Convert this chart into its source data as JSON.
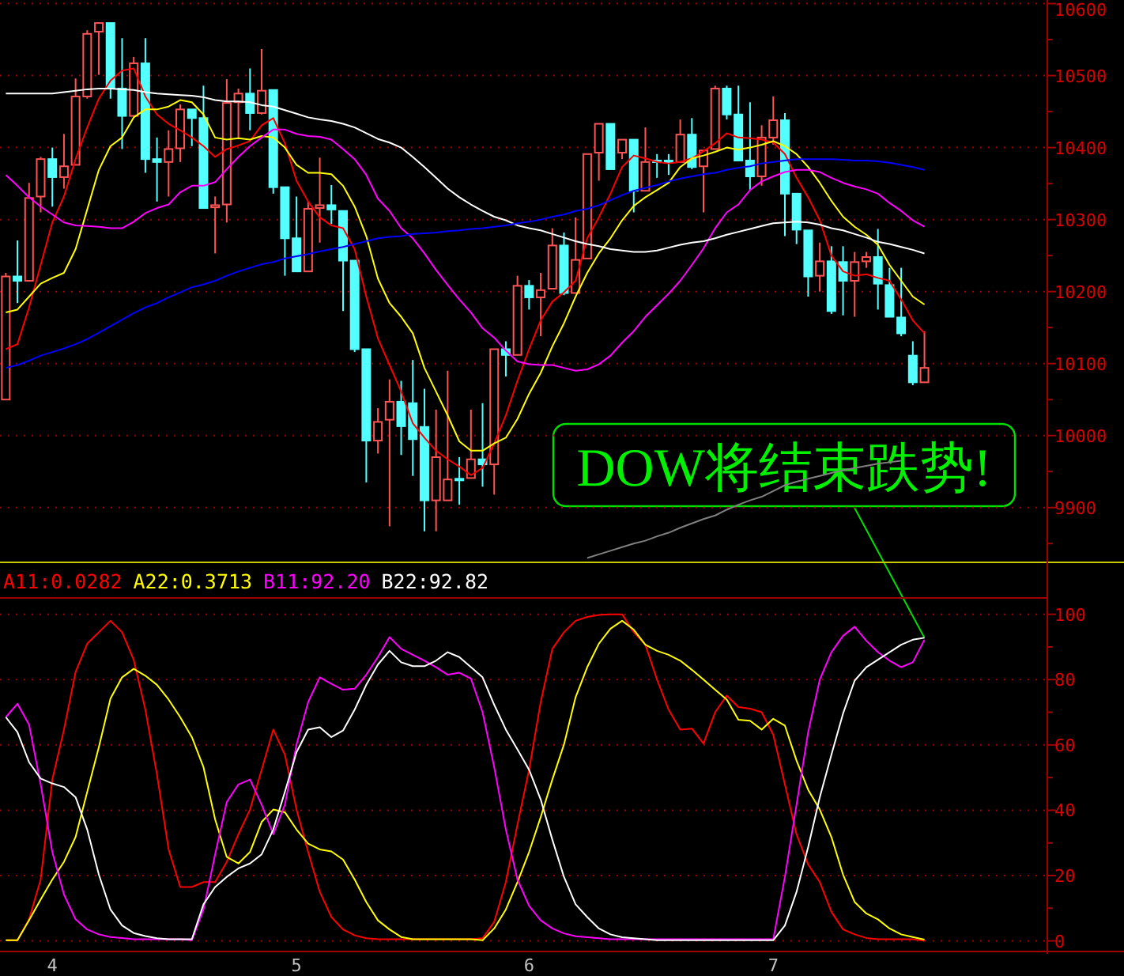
{
  "chart_data": [
    {
      "type": "candlestick",
      "tick_labels": "y",
      "grid": "y",
      "categories": [
        null,
        null,
        null,
        null,
        null,
        null,
        null,
        null,
        null,
        null,
        null,
        null,
        null,
        null,
        null,
        null,
        null,
        null,
        null,
        null,
        null,
        null,
        null,
        null,
        null,
        null,
        null,
        null,
        null,
        null,
        null,
        null,
        null,
        null,
        null,
        null,
        null,
        null,
        null,
        null,
        null,
        null,
        null,
        null,
        null,
        null,
        null,
        null,
        null,
        null,
        null,
        null,
        null,
        null,
        null,
        null,
        null,
        null,
        null,
        null,
        null,
        null,
        null,
        null,
        null,
        null,
        null,
        null,
        null,
        null,
        null,
        null,
        null,
        null,
        null,
        null,
        null,
        null,
        null,
        null
      ],
      "ohlc": [
        [
          10050,
          10226,
          10050,
          10221
        ],
        [
          10221,
          10271,
          10184,
          10215
        ],
        [
          10215,
          10351,
          10215,
          10330
        ],
        [
          10332,
          10387,
          10310,
          10384
        ],
        [
          10384,
          10400,
          10318,
          10359
        ],
        [
          10359,
          10419,
          10343,
          10374
        ],
        [
          10376,
          10496,
          10376,
          10471
        ],
        [
          10471,
          10563,
          10468,
          10558
        ],
        [
          10561,
          10574,
          10501,
          10573
        ],
        [
          10573,
          10573,
          10468,
          10482
        ],
        [
          10482,
          10552,
          10398,
          10444
        ],
        [
          10444,
          10526,
          10444,
          10517
        ],
        [
          10517,
          10552,
          10365,
          10384
        ],
        [
          10384,
          10414,
          10325,
          10380
        ],
        [
          10380,
          10424,
          10332,
          10398
        ],
        [
          10399,
          10460,
          10380,
          10453
        ],
        [
          10453,
          10453,
          10402,
          10441
        ],
        [
          10441,
          10486,
          10316,
          10316
        ],
        [
          10317,
          10332,
          10253,
          10320
        ],
        [
          10321,
          10495,
          10296,
          10462
        ],
        [
          10463,
          10482,
          10413,
          10475
        ],
        [
          10475,
          10510,
          10424,
          10448
        ],
        [
          10448,
          10537,
          10446,
          10479
        ],
        [
          10480,
          10480,
          10336,
          10345
        ],
        [
          10345,
          10345,
          10222,
          10274
        ],
        [
          10274,
          10332,
          10228,
          10228
        ],
        [
          10228,
          10325,
          10228,
          10315
        ],
        [
          10316,
          10386,
          10268,
          10320
        ],
        [
          10320,
          10348,
          10294,
          10314
        ],
        [
          10312,
          10312,
          10173,
          10243
        ],
        [
          10243,
          10243,
          10116,
          10120
        ],
        [
          10120,
          10120,
          9935,
          9993
        ],
        [
          9993,
          10038,
          9975,
          10019
        ],
        [
          10022,
          10078,
          9874,
          10047
        ],
        [
          10047,
          10076,
          9973,
          10013
        ],
        [
          10045,
          10105,
          9944,
          9995
        ],
        [
          10012,
          10065,
          9867,
          9910
        ],
        [
          9910,
          10036,
          9867,
          9970
        ],
        [
          9910,
          10090,
          9910,
          9939
        ],
        [
          9940,
          9970,
          9904,
          9938
        ],
        [
          9941,
          10036,
          9941,
          9967
        ],
        [
          9967,
          10045,
          9929,
          9960
        ],
        [
          9960,
          10120,
          9918,
          10120
        ],
        [
          10120,
          10131,
          10082,
          10112
        ],
        [
          10112,
          10222,
          10112,
          10208
        ],
        [
          10208,
          10216,
          10175,
          10192
        ],
        [
          10192,
          10226,
          10138,
          10202
        ],
        [
          10204,
          10288,
          10204,
          10264
        ],
        [
          10264,
          10282,
          10195,
          10198
        ],
        [
          10198,
          10303,
          10198,
          10244
        ],
        [
          10246,
          10391,
          10246,
          10391
        ],
        [
          10393,
          10433,
          10354,
          10433
        ],
        [
          10433,
          10433,
          10369,
          10370
        ],
        [
          10393,
          10411,
          10384,
          10411
        ],
        [
          10411,
          10411,
          10310,
          10340
        ],
        [
          10340,
          10428,
          10340,
          10380
        ],
        [
          10382,
          10391,
          10358,
          10381
        ],
        [
          10382,
          10391,
          10362,
          10381
        ],
        [
          10380,
          10439,
          10380,
          10418
        ],
        [
          10418,
          10441,
          10370,
          10373
        ],
        [
          10374,
          10396,
          10310,
          10396
        ],
        [
          10398,
          10486,
          10398,
          10482
        ],
        [
          10482,
          10486,
          10439,
          10446
        ],
        [
          10446,
          10486,
          10382,
          10382
        ],
        [
          10382,
          10463,
          10341,
          10360
        ],
        [
          10360,
          10431,
          10347,
          10414
        ],
        [
          10414,
          10471,
          10404,
          10438
        ],
        [
          10438,
          10448,
          10277,
          10336
        ],
        [
          10336,
          10336,
          10266,
          10286
        ],
        [
          10285,
          10285,
          10193,
          10221
        ],
        [
          10222,
          10268,
          10200,
          10242
        ],
        [
          10242,
          10263,
          10169,
          10173
        ],
        [
          10241,
          10263,
          10167,
          10215
        ],
        [
          10215,
          10255,
          10165,
          10241
        ],
        [
          10242,
          10255,
          10233,
          10248
        ],
        [
          10248,
          10287,
          10175,
          10211
        ],
        [
          10209,
          10233,
          10165,
          10165
        ],
        [
          10164,
          10233,
          10138,
          10142
        ],
        [
          10111,
          10131,
          10070,
          10074
        ],
        [
          10074,
          10145,
          10074,
          10094
        ]
      ],
      "colors": [
        "#ff5454",
        "#54ffff",
        "#ff5454",
        "#ff5454",
        "#54ffff",
        "#ff5454",
        "#ff5454",
        "#ff5454",
        "#ff5454",
        "#54ffff",
        "#54ffff",
        "#ff5454",
        "#54ffff",
        "#54ffff",
        "#ff5454",
        "#ff5454",
        "#54ffff",
        "#54ffff",
        "#ff5454",
        "#ff5454",
        "#ff5454",
        "#54ffff",
        "#ff5454",
        "#54ffff",
        "#54ffff",
        "#54ffff",
        "#ff5454",
        "#ff5454",
        "#54ffff",
        "#54ffff",
        "#54ffff",
        "#54ffff",
        "#ff5454",
        "#ff5454",
        "#54ffff",
        "#54ffff",
        "#54ffff",
        "#ff5454",
        "#ff5454",
        "#54ffff",
        "#ff5454",
        "#54ffff",
        "#ff5454",
        "#54ffff",
        "#ff5454",
        "#54ffff",
        "#ff5454",
        "#ff5454",
        "#54ffff",
        "#ff5454",
        "#ff5454",
        "#ff5454",
        "#54ffff",
        "#ff5454",
        "#54ffff",
        "#ff5454",
        "#54ffff",
        "#54ffff",
        "#ff5454",
        "#54ffff",
        "#ff5454",
        "#ff5454",
        "#54ffff",
        "#54ffff",
        "#54ffff",
        "#ff5454",
        "#ff5454",
        "#54ffff",
        "#54ffff",
        "#54ffff",
        "#ff5454",
        "#54ffff",
        "#54ffff",
        "#ff5454",
        "#ff5454",
        "#54ffff",
        "#54ffff",
        "#54ffff",
        "#54ffff",
        "#ff5454"
      ],
      "series": [
        {
          "type": "line",
          "color": "#ff0000",
          "values": [
            10120,
            10127,
            10178,
            10237,
            10296,
            10332,
            10384,
            10428,
            10468,
            10493,
            10507,
            10510,
            10471,
            10446,
            10433,
            10424,
            10414,
            10402,
            10387,
            10398,
            10403,
            10409,
            10431,
            10441,
            10406,
            10354,
            10325,
            10303,
            10292,
            10288,
            10259,
            10193,
            10135,
            10098,
            10061,
            10017,
            9997,
            9979,
            9967,
            9957,
            9945,
            9955,
            9989,
            10028,
            10076,
            10120,
            10160,
            10186,
            10199,
            10215,
            10274,
            10303,
            10336,
            10373,
            10389,
            10385,
            10380,
            10378,
            10380,
            10385,
            10395,
            10406,
            10420,
            10414,
            10413,
            10411,
            10407,
            10391,
            10358,
            10331,
            10299,
            10250,
            10228,
            10222,
            10224,
            10219,
            10215,
            10189,
            10160,
            10142
          ]
        },
        {
          "type": "line",
          "color": "#ffff00",
          "values": [
            10171,
            10175,
            10193,
            10211,
            10219,
            10226,
            10259,
            10314,
            10369,
            10402,
            10414,
            10442,
            10453,
            10453,
            10457,
            10466,
            10463,
            10446,
            10414,
            10411,
            10413,
            10411,
            10416,
            10414,
            10400,
            10376,
            10365,
            10365,
            10363,
            10347,
            10318,
            10277,
            10218,
            10184,
            10165,
            10142,
            10094,
            10061,
            10028,
            9992,
            9979,
            9979,
            9989,
            9997,
            10023,
            10058,
            10087,
            10124,
            10156,
            10193,
            10226,
            10253,
            10274,
            10299,
            10319,
            10331,
            10341,
            10351,
            10373,
            10385,
            10389,
            10394,
            10400,
            10397,
            10400,
            10404,
            10409,
            10402,
            10391,
            10373,
            10351,
            10326,
            10304,
            10290,
            10279,
            10265,
            10237,
            10215,
            10193,
            10182
          ]
        },
        {
          "type": "line",
          "color": "#ff00ff",
          "values": [
            10362,
            10347,
            10331,
            10318,
            10307,
            10296,
            10292,
            10291,
            10290,
            10288,
            10288,
            10297,
            10309,
            10316,
            10321,
            10338,
            10347,
            10347,
            10352,
            10370,
            10387,
            10402,
            10414,
            10425,
            10425,
            10419,
            10416,
            10415,
            10411,
            10398,
            10384,
            10362,
            10329,
            10312,
            10288,
            10274,
            10253,
            10230,
            10209,
            10189,
            10171,
            10149,
            10136,
            10118,
            10103,
            10099,
            10098,
            10098,
            10094,
            10090,
            10092,
            10099,
            10111,
            10129,
            10145,
            10165,
            10181,
            10197,
            10215,
            10237,
            10260,
            10288,
            10310,
            10321,
            10341,
            10353,
            10360,
            10366,
            10369,
            10369,
            10366,
            10358,
            10351,
            10346,
            10342,
            10336,
            10323,
            10312,
            10299,
            10290
          ]
        },
        {
          "type": "line",
          "color": "#ffffff",
          "values": [
            10475,
            10475,
            10475,
            10475,
            10475,
            10477,
            10479,
            10481,
            10482,
            10482,
            10481,
            10480,
            10477,
            10475,
            10474,
            10473,
            10472,
            10470,
            10466,
            10464,
            10464,
            10463,
            10459,
            10457,
            10452,
            10447,
            10442,
            10439,
            10437,
            10433,
            10428,
            10420,
            10412,
            10407,
            10400,
            10387,
            10373,
            10358,
            10343,
            10331,
            10321,
            10312,
            10304,
            10299,
            10292,
            10288,
            10285,
            10280,
            10275,
            10270,
            10266,
            10263,
            10259,
            10257,
            10255,
            10255,
            10257,
            10261,
            10265,
            10268,
            10270,
            10274,
            10279,
            10283,
            10287,
            10291,
            10295,
            10296,
            10297,
            10296,
            10293,
            10288,
            10285,
            10280,
            10275,
            10269,
            10266,
            10262,
            10258,
            10253
          ]
        },
        {
          "type": "line",
          "color": "#0000ff",
          "values": [
            10094,
            10098,
            10104,
            10111,
            10116,
            10121,
            10127,
            10134,
            10143,
            10152,
            10161,
            10170,
            10178,
            10184,
            10192,
            10199,
            10206,
            10210,
            10215,
            10222,
            10228,
            10233,
            10238,
            10241,
            10246,
            10249,
            10252,
            10256,
            10259,
            10262,
            10266,
            10270,
            10274,
            10276,
            10277,
            10280,
            10281,
            10282,
            10284,
            10285,
            10287,
            10288,
            10290,
            10292,
            10295,
            10297,
            10300,
            10304,
            10307,
            10312,
            10315,
            10320,
            10327,
            10334,
            10340,
            10344,
            10348,
            10353,
            10357,
            10360,
            10363,
            10365,
            10369,
            10372,
            10374,
            10378,
            10380,
            10382,
            10384,
            10384,
            10384,
            10384,
            10383,
            10382,
            10382,
            10381,
            10379,
            10376,
            10373,
            10369
          ]
        },
        {
          "type": "line",
          "color": "#808080",
          "values": [
            null,
            null,
            null,
            null,
            null,
            null,
            null,
            null,
            null,
            null,
            null,
            null,
            null,
            null,
            null,
            null,
            null,
            null,
            null,
            null,
            null,
            null,
            null,
            null,
            null,
            null,
            null,
            null,
            null,
            null,
            null,
            null,
            null,
            null,
            null,
            null,
            null,
            null,
            null,
            null,
            null,
            null,
            null,
            null,
            null,
            null,
            null,
            null,
            null,
            null,
            9830,
            9835,
            9840,
            9845,
            9850,
            9854,
            9860,
            9865,
            9872,
            9878,
            9884,
            9889,
            9897,
            9904,
            9910,
            9915,
            9923,
            9931,
            9936,
            9940,
            9944,
            9948,
            9952,
            9955,
            9958,
            9961,
            9963,
            9965,
            null,
            null
          ]
        }
      ],
      "ylim": [
        9825,
        10605
      ],
      "yticks": [
        9900,
        10000,
        10100,
        10200,
        10300,
        10400,
        10500,
        10600
      ]
    },
    {
      "type": "line",
      "grid": "y",
      "legend": "top left",
      "annotations": [
        "DOW将结束跌势!"
      ],
      "categories": [
        null,
        null,
        null,
        null,
        "4",
        null,
        null,
        null,
        null,
        null,
        null,
        null,
        null,
        null,
        null,
        null,
        null,
        null,
        null,
        null,
        null,
        null,
        null,
        null,
        null,
        "5",
        null,
        null,
        null,
        null,
        null,
        null,
        null,
        null,
        null,
        null,
        null,
        null,
        null,
        null,
        null,
        null,
        null,
        null,
        null,
        "6",
        null,
        null,
        null,
        null,
        null,
        null,
        null,
        null,
        null,
        null,
        null,
        null,
        null,
        null,
        null,
        null,
        null,
        null,
        null,
        null,
        "7",
        null,
        null,
        null,
        null,
        null,
        null,
        null,
        null,
        null,
        null,
        null,
        null,
        null
      ],
      "series": [
        {
          "name": "A11:0.0282",
          "color": "#ff0000",
          "values": [
            0.2,
            0.2,
            6.6,
            18.8,
            49.4,
            64.7,
            82.3,
            91,
            94.5,
            98,
            94.5,
            86,
            70.8,
            50.9,
            28,
            16.5,
            16.5,
            18,
            18,
            24.2,
            32.6,
            40.2,
            52.4,
            64.7,
            57,
            40.2,
            27.2,
            15,
            7.3,
            3.5,
            1.7,
            0.8,
            0.5,
            0.5,
            0.5,
            0.5,
            0.5,
            0.5,
            0.5,
            0.5,
            0.5,
            0.8,
            5.8,
            18,
            35.6,
            52.4,
            73.1,
            89.4,
            94.5,
            98,
            99.2,
            99.8,
            100,
            100,
            94.5,
            90.7,
            80,
            70.8,
            64.7,
            65,
            60.4,
            70,
            75.1,
            71.6,
            71.1,
            70,
            63.1,
            47.9,
            32.6,
            23.4,
            18,
            8.9,
            3.5,
            2,
            0.9,
            0.5,
            0.5,
            0.5,
            0.5,
            0
          ]
        },
        {
          "name": "A22:0.3713",
          "color": "#ffff00",
          "values": [
            0.2,
            0.2,
            6.3,
            12.7,
            18.8,
            24.2,
            31.8,
            45.6,
            59.3,
            74.2,
            80.7,
            83.3,
            81.2,
            78.4,
            73.9,
            68.5,
            62.4,
            53.2,
            37.2,
            25.7,
            23.7,
            27.2,
            36.4,
            40.2,
            39.4,
            34.1,
            29.8,
            28,
            27.4,
            24.9,
            18.8,
            11.9,
            6.3,
            3.5,
            1.2,
            0.5,
            0.5,
            0.5,
            0.5,
            0.5,
            0.5,
            0.2,
            3.8,
            9.6,
            18,
            27.2,
            37.9,
            49.4,
            60.1,
            74.6,
            83.8,
            91,
            95.6,
            98,
            95.3,
            90.7,
            88.8,
            87.6,
            85.8,
            83,
            80,
            76.9,
            73.9,
            67.7,
            67.4,
            64.7,
            68,
            65.9,
            55.2,
            46.3,
            40.2,
            31.8,
            20.3,
            11.9,
            8.4,
            6.6,
            3.8,
            2,
            1.2,
            0.4
          ]
        },
        {
          "name": "B11:92.20",
          "color": "#ff00ff",
          "values": [
            68.5,
            72.6,
            66.2,
            47.9,
            27.2,
            14.2,
            6.6,
            3.5,
            2,
            1.2,
            0.9,
            0.5,
            0.5,
            0.5,
            0.5,
            0.5,
            0.2,
            9.6,
            26.5,
            42.5,
            47.9,
            49.4,
            41.7,
            32.6,
            41.7,
            60.1,
            73.1,
            80.7,
            78.7,
            76.9,
            77.2,
            81.5,
            86.9,
            93,
            89.4,
            87.6,
            85.8,
            83.8,
            81.5,
            82.1,
            80.3,
            70,
            53.2,
            34.1,
            18.8,
            10.7,
            6.3,
            3.8,
            2.3,
            1.4,
            1.1,
            0.8,
            0.5,
            0.5,
            0.5,
            0.5,
            0.5,
            0.5,
            0.5,
            0.5,
            0.5,
            0.5,
            0.5,
            0.5,
            0.5,
            0.5,
            0.5,
            19.6,
            41.7,
            63.9,
            80,
            88.4,
            93.4,
            96.2,
            91.9,
            88.4,
            85.8,
            83.8,
            85.3,
            92.2
          ]
        },
        {
          "name": "B22:92.82",
          "color": "#ffffff",
          "values": [
            68.5,
            63.9,
            54.7,
            49.7,
            48.2,
            47.1,
            44,
            34.1,
            20.3,
            9.6,
            4.7,
            2.4,
            1.5,
            0.8,
            0.5,
            0.5,
            0.5,
            11.2,
            16.5,
            19.6,
            22.2,
            23.7,
            26.5,
            34.1,
            45.6,
            57.8,
            64.7,
            65.4,
            62.4,
            64.4,
            70.8,
            78.4,
            84.6,
            88.8,
            85.3,
            84.1,
            84.1,
            85.8,
            88.4,
            86.9,
            83.8,
            80.7,
            72.3,
            64.7,
            58.6,
            52.4,
            43.3,
            31,
            19.6,
            11.2,
            7.3,
            3.8,
            2,
            1.1,
            0.8,
            0.5,
            0.2,
            0.2,
            0.2,
            0.2,
            0.2,
            0.2,
            0.2,
            0.2,
            0.2,
            0.2,
            0.2,
            4.7,
            15,
            28.7,
            44,
            57,
            69.6,
            79.7,
            83.8,
            86.1,
            88.4,
            90.7,
            92.2,
            92.8
          ]
        }
      ],
      "ylim": [
        -3,
        105
      ],
      "yticks": [
        0,
        20,
        40,
        60,
        80,
        100
      ]
    }
  ]
}
